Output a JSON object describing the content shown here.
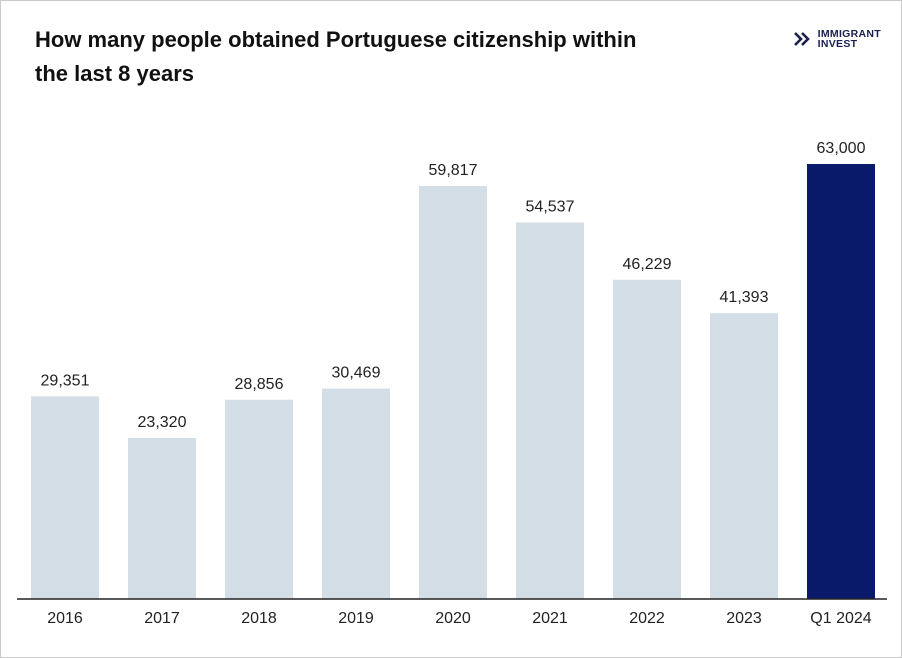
{
  "title": "How many people obtained Portuguese citizenship within the last 8 years",
  "logo": {
    "line1": "IMMIGRANT",
    "line2": "INVEST",
    "icon": "double-chevron-logo-icon"
  },
  "colors": {
    "default_bar": "#d4dee6",
    "highlight_bar": "#0a1a6b",
    "axis": "#222222"
  },
  "chart_data": {
    "type": "bar",
    "title": "How many people obtained Portuguese citizenship within the last 8 years",
    "categories": [
      "2016",
      "2017",
      "2018",
      "2019",
      "2020",
      "2021",
      "2022",
      "2023",
      "Q1 2024"
    ],
    "values": [
      29351,
      23320,
      28856,
      30469,
      59817,
      54537,
      46229,
      41393,
      63000
    ],
    "value_labels": [
      "29,351",
      "23,320",
      "28,856",
      "30,469",
      "59,817",
      "54,537",
      "46,229",
      "41,393",
      "63,000"
    ],
    "highlight": "Q1 2024",
    "xlabel": "",
    "ylabel": "",
    "ylim": [
      0,
      63000
    ],
    "grid": false,
    "legend": "none"
  }
}
